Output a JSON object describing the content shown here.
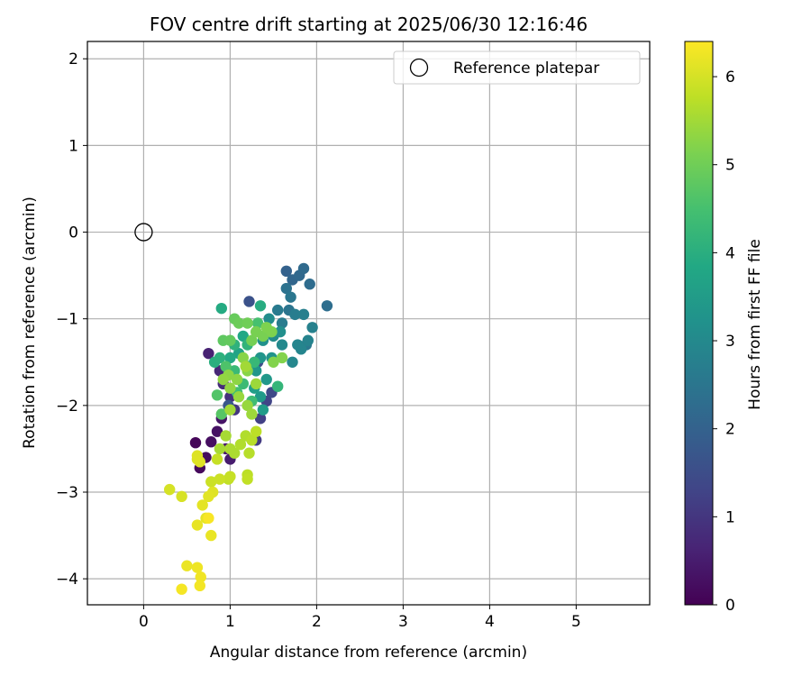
{
  "chart_data": {
    "type": "scatter",
    "title": "FOV centre drift starting at 2025/06/30 12:16:46",
    "xlabel": "Angular distance from reference (arcmin)",
    "ylabel": "Rotation from reference (arcmin)",
    "xlim": [
      -0.65,
      5.85
    ],
    "ylim": [
      -4.3,
      2.2
    ],
    "x_ticks": [
      0,
      1,
      2,
      3,
      4,
      5
    ],
    "y_ticks": [
      2,
      1,
      0,
      -1,
      -2,
      -3,
      -4
    ],
    "grid": true,
    "legend": {
      "location": "top-right",
      "entries": [
        "Reference platepar"
      ]
    },
    "reference_point": {
      "label": "Reference platepar",
      "x": 0,
      "y": 0,
      "marker": "open-circle"
    },
    "colorbar": {
      "label": "Hours from first FF file",
      "range": [
        0,
        6.4
      ],
      "ticks": [
        0,
        1,
        2,
        3,
        4,
        5,
        6
      ],
      "colormap": "viridis"
    },
    "series": [
      {
        "points": [
          [
            0.6,
            -2.43
          ],
          [
            0.65,
            -2.72
          ],
          [
            0.72,
            -2.6
          ],
          [
            0.78,
            -2.42
          ],
          [
            0.85,
            -2.3
          ],
          [
            0.9,
            -2.15
          ],
          [
            0.95,
            -2.5
          ],
          [
            1.0,
            -2.62
          ],
          [
            0.75,
            -1.4
          ],
          [
            0.88,
            -1.6
          ],
          [
            0.92,
            -1.75
          ],
          [
            1.0,
            -1.9
          ],
          [
            1.05,
            -2.05
          ],
          [
            1.3,
            -2.4
          ],
          [
            1.35,
            -2.15
          ],
          [
            1.42,
            -1.95
          ],
          [
            1.48,
            -1.85
          ],
          [
            1.32,
            -1.5
          ],
          [
            1.22,
            -0.8
          ],
          [
            0.98,
            -2.0
          ]
        ],
        "hours": [
          0.1,
          0.15,
          0.2,
          0.25,
          0.3,
          0.35,
          0.4,
          0.5,
          0.6,
          0.7,
          0.8,
          0.9,
          1.0,
          1.1,
          1.2,
          1.3,
          1.4,
          1.5,
          1.6,
          1.7
        ]
      },
      {
        "points": [
          [
            1.65,
            -0.45
          ],
          [
            1.72,
            -0.55
          ],
          [
            1.8,
            -0.5
          ],
          [
            1.85,
            -0.42
          ],
          [
            1.92,
            -0.6
          ],
          [
            2.12,
            -0.85
          ],
          [
            1.65,
            -0.65
          ],
          [
            1.7,
            -0.75
          ],
          [
            1.55,
            -0.9
          ],
          [
            1.6,
            -1.05
          ],
          [
            1.75,
            -0.95
          ],
          [
            1.85,
            -0.95
          ],
          [
            1.95,
            -1.1
          ],
          [
            1.9,
            -1.25
          ],
          [
            1.82,
            -1.35
          ],
          [
            1.72,
            -1.5
          ],
          [
            1.6,
            -1.3
          ],
          [
            1.5,
            -1.2
          ],
          [
            1.45,
            -1.0
          ],
          [
            1.38,
            -1.25
          ],
          [
            1.35,
            -1.45
          ],
          [
            1.3,
            -1.6
          ],
          [
            1.42,
            -1.7
          ],
          [
            1.35,
            -1.9
          ],
          [
            1.38,
            -2.05
          ],
          [
            1.28,
            -1.8
          ],
          [
            1.2,
            -1.55
          ],
          [
            1.1,
            -1.4
          ],
          [
            1.15,
            -1.2
          ],
          [
            1.0,
            -1.45
          ],
          [
            1.68,
            -0.9
          ],
          [
            1.78,
            -1.3
          ],
          [
            1.88,
            -1.3
          ],
          [
            1.58,
            -1.15
          ],
          [
            1.48,
            -1.45
          ]
        ],
        "hours": [
          2.0,
          2.1,
          2.15,
          2.2,
          2.25,
          2.3,
          2.4,
          2.5,
          2.6,
          2.65,
          2.7,
          2.75,
          2.8,
          2.85,
          2.9,
          2.95,
          3.0,
          3.05,
          3.1,
          3.2,
          3.3,
          3.35,
          3.4,
          3.45,
          3.5,
          3.55,
          3.6,
          3.7,
          3.8,
          3.85,
          2.45,
          2.9,
          2.55,
          3.15,
          3.25
        ]
      },
      {
        "points": [
          [
            0.9,
            -0.88
          ],
          [
            1.35,
            -0.85
          ],
          [
            0.82,
            -1.5
          ],
          [
            0.88,
            -1.45
          ],
          [
            1.05,
            -1.3
          ],
          [
            1.2,
            -1.3
          ],
          [
            1.55,
            -1.78
          ],
          [
            1.28,
            -1.5
          ],
          [
            1.05,
            -1.6
          ],
          [
            1.15,
            -1.75
          ],
          [
            1.25,
            -1.95
          ],
          [
            1.08,
            -1.85
          ],
          [
            1.32,
            -1.05
          ],
          [
            1.45,
            -1.15
          ],
          [
            0.95,
            -1.55
          ],
          [
            0.85,
            -1.88
          ],
          [
            0.9,
            -2.1
          ]
        ],
        "hours": [
          3.9,
          3.95,
          4.0,
          4.05,
          4.1,
          4.15,
          4.2,
          4.25,
          4.3,
          4.35,
          4.4,
          4.45,
          4.5,
          4.55,
          4.6,
          4.65,
          4.7
        ]
      },
      {
        "points": [
          [
            0.92,
            -1.25
          ],
          [
            1.0,
            -1.25
          ],
          [
            1.05,
            -1.0
          ],
          [
            1.1,
            -1.05
          ],
          [
            1.2,
            -1.05
          ],
          [
            1.25,
            -1.25
          ],
          [
            1.3,
            -1.15
          ],
          [
            1.38,
            -1.2
          ],
          [
            1.42,
            -1.1
          ],
          [
            1.48,
            -1.15
          ],
          [
            1.5,
            -1.5
          ],
          [
            1.6,
            -1.45
          ],
          [
            1.15,
            -1.45
          ],
          [
            1.2,
            -1.6
          ],
          [
            1.08,
            -1.7
          ],
          [
            0.98,
            -1.65
          ],
          [
            0.92,
            -1.7
          ],
          [
            1.0,
            -1.8
          ],
          [
            1.1,
            -1.9
          ],
          [
            1.2,
            -2.0
          ],
          [
            1.25,
            -2.1
          ],
          [
            1.3,
            -1.75
          ],
          [
            1.18,
            -1.55
          ],
          [
            1.0,
            -2.05
          ],
          [
            0.95,
            -2.35
          ],
          [
            0.88,
            -2.5
          ],
          [
            1.0,
            -2.5
          ],
          [
            1.05,
            -2.55
          ],
          [
            1.12,
            -2.45
          ],
          [
            1.18,
            -2.35
          ],
          [
            1.22,
            -2.55
          ],
          [
            1.25,
            -2.4
          ],
          [
            1.3,
            -2.3
          ],
          [
            1.2,
            -2.8
          ],
          [
            1.2,
            -2.85
          ],
          [
            0.98,
            -2.85
          ],
          [
            1.0,
            -2.82
          ],
          [
            0.85,
            -2.62
          ],
          [
            0.88,
            -2.85
          ],
          [
            0.78,
            -2.88
          ]
        ],
        "hours": [
          4.8,
          4.85,
          4.9,
          4.95,
          5.0,
          5.05,
          5.1,
          5.1,
          5.15,
          5.15,
          5.2,
          5.2,
          5.25,
          5.25,
          5.3,
          5.3,
          5.35,
          5.35,
          5.4,
          5.4,
          5.45,
          5.45,
          5.5,
          5.5,
          5.55,
          5.55,
          5.6,
          5.6,
          5.65,
          5.65,
          5.7,
          5.7,
          5.75,
          5.75,
          5.8,
          5.8,
          5.85,
          5.85,
          5.9,
          5.9
        ]
      },
      {
        "points": [
          [
            0.3,
            -2.97
          ],
          [
            0.44,
            -3.05
          ],
          [
            0.62,
            -2.62
          ],
          [
            0.62,
            -2.58
          ],
          [
            0.65,
            -2.65
          ],
          [
            0.8,
            -3.0
          ],
          [
            0.75,
            -3.05
          ],
          [
            0.68,
            -3.15
          ],
          [
            0.72,
            -3.3
          ],
          [
            0.62,
            -3.38
          ],
          [
            0.78,
            -3.5
          ],
          [
            0.5,
            -3.85
          ],
          [
            0.62,
            -3.87
          ],
          [
            0.66,
            -3.98
          ],
          [
            0.65,
            -4.08
          ],
          [
            0.44,
            -4.12
          ],
          [
            0.75,
            -3.3
          ]
        ],
        "hours": [
          6.0,
          6.02,
          6.05,
          6.08,
          6.1,
          6.1,
          6.12,
          6.15,
          6.15,
          6.18,
          6.2,
          6.22,
          6.25,
          6.27,
          6.3,
          6.32,
          6.35
        ]
      }
    ]
  }
}
